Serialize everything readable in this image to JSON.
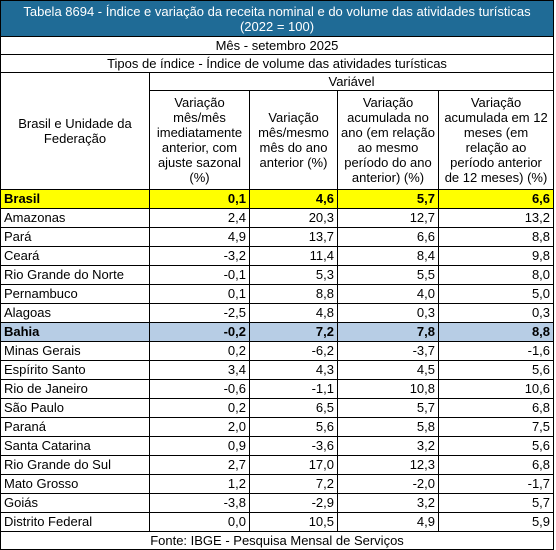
{
  "title": "Tabela 8694 - Índice e variação da receita nominal e do volume das atividades turísticas (2022 = 100)",
  "month": "Mês - setembro 2025",
  "index_type": "Tipos de índice - Índice de volume das atividades turísticas",
  "variable": "Variável",
  "columns": {
    "region": "Brasil e Unidade da Federação",
    "c1": "Variação mês/mês imediatamente anterior, com ajuste sazonal (%)",
    "c2": "Variação mês/mesmo mês do ano anterior (%)",
    "c3": "Variação acumulada no ano (em relação ao mesmo período do ano anterior) (%)",
    "c4": "Variação acumulada em 12 meses (em relação ao período anterior de 12 meses) (%)"
  },
  "rows": [
    {
      "name": "Brasil",
      "v1": "0,1",
      "v2": "4,6",
      "v3": "5,7",
      "v4": "6,6",
      "highlight": "yellow"
    },
    {
      "name": "Amazonas",
      "v1": "2,4",
      "v2": "20,3",
      "v3": "12,7",
      "v4": "13,2"
    },
    {
      "name": "Pará",
      "v1": "4,9",
      "v2": "13,7",
      "v3": "6,6",
      "v4": "8,8"
    },
    {
      "name": "Ceará",
      "v1": "-3,2",
      "v2": "11,4",
      "v3": "8,4",
      "v4": "9,8"
    },
    {
      "name": "Rio Grande do Norte",
      "v1": "-0,1",
      "v2": "5,3",
      "v3": "5,5",
      "v4": "8,0"
    },
    {
      "name": "Pernambuco",
      "v1": "0,1",
      "v2": "8,8",
      "v3": "4,0",
      "v4": "5,0"
    },
    {
      "name": "Alagoas",
      "v1": "-2,5",
      "v2": "4,8",
      "v3": "0,3",
      "v4": "0,3"
    },
    {
      "name": "Bahia",
      "v1": "-0,2",
      "v2": "7,2",
      "v3": "7,8",
      "v4": "8,8",
      "highlight": "blue"
    },
    {
      "name": "Minas Gerais",
      "v1": "0,2",
      "v2": "-6,2",
      "v3": "-3,7",
      "v4": "-1,6"
    },
    {
      "name": "Espírito Santo",
      "v1": "3,4",
      "v2": "4,3",
      "v3": "4,5",
      "v4": "5,6"
    },
    {
      "name": "Rio de Janeiro",
      "v1": "-0,6",
      "v2": "-1,1",
      "v3": "10,8",
      "v4": "10,6"
    },
    {
      "name": "São Paulo",
      "v1": "0,2",
      "v2": "6,5",
      "v3": "5,7",
      "v4": "6,8"
    },
    {
      "name": "Paraná",
      "v1": "2,0",
      "v2": "5,6",
      "v3": "5,8",
      "v4": "7,5"
    },
    {
      "name": "Santa Catarina",
      "v1": "0,9",
      "v2": "-3,6",
      "v3": "3,2",
      "v4": "5,6"
    },
    {
      "name": "Rio Grande do Sul",
      "v1": "2,7",
      "v2": "17,0",
      "v3": "12,3",
      "v4": "6,8"
    },
    {
      "name": "Mato Grosso",
      "v1": "1,2",
      "v2": "7,2",
      "v3": "-2,0",
      "v4": "-1,7"
    },
    {
      "name": "Goiás",
      "v1": "-3,8",
      "v2": "-2,9",
      "v3": "3,2",
      "v4": "5,7"
    },
    {
      "name": "Distrito Federal",
      "v1": "0,0",
      "v2": "10,5",
      "v3": "4,9",
      "v4": "5,9"
    }
  ],
  "source": "Fonte: IBGE - Pesquisa Mensal de Serviços",
  "colors": {
    "title_bg": "#1f6b96",
    "brasil_bg": "#ffff00",
    "bahia_bg": "#b7cde5"
  }
}
